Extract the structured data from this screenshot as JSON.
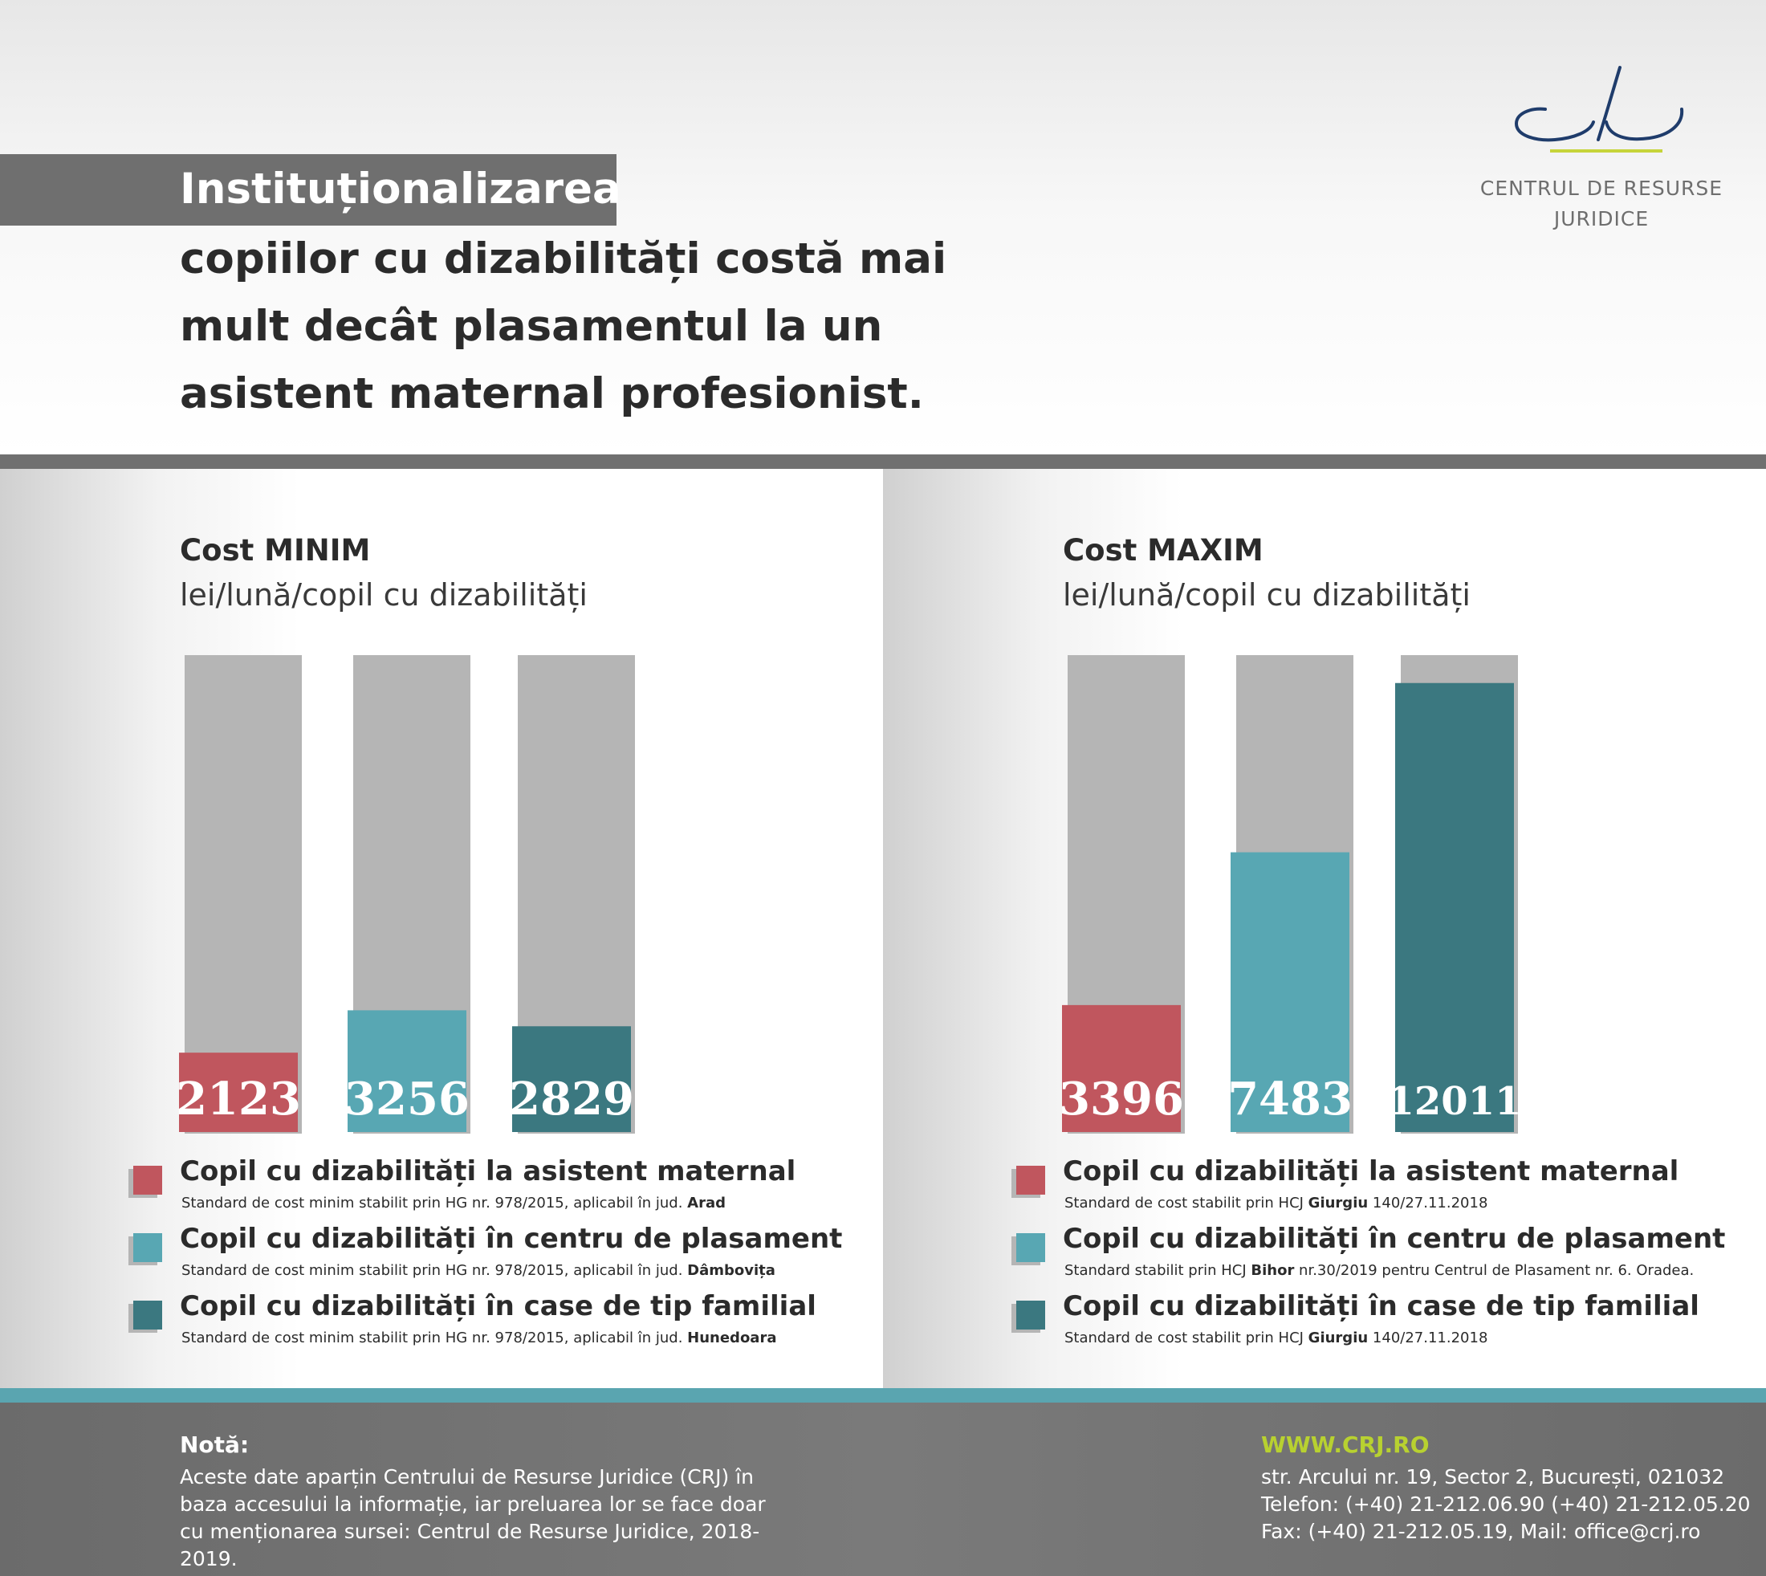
{
  "header": {
    "title_line1": "Instituționalizarea",
    "title_rest": "copiilor cu dizabilități costă mai mult decât plasamentul la un asistent maternal profesionist."
  },
  "logo": {
    "name_line1": "CENTRUL DE RESURSE",
    "name_line2": "JURIDICE"
  },
  "colors": {
    "red": "#c0565e",
    "light_teal": "#58a7b3",
    "dark_teal": "#3b7880",
    "track": "#b5b5b5"
  },
  "chart_data": [
    {
      "type": "bar",
      "title": "Cost MINIM",
      "subtitle": "lei/lună/copil cu dizabilități",
      "ylim": [
        0,
        12800
      ],
      "categories": [
        "Copil cu dizabilități la asistent maternal",
        "Copil cu dizabilități în centru de plasament",
        "Copil cu dizabilități în case de tip familial"
      ],
      "values": [
        2123,
        3256,
        2829
      ],
      "value_labels": [
        "2123",
        "3256",
        "2829"
      ],
      "legend": [
        {
          "label": "Copil cu dizabilități la asistent maternal",
          "note_prefix": "Standard de cost minim stabilit prin HG nr. 978/2015, aplicabil în jud. ",
          "note_bold": "Arad",
          "note_suffix": "",
          "color": "#c0565e"
        },
        {
          "label": "Copil cu dizabilități în centru de plasament",
          "note_prefix": "Standard de cost minim stabilit prin HG nr. 978/2015, aplicabil în jud. ",
          "note_bold": "Dâmbovița",
          "note_suffix": "",
          "color": "#58a7b3"
        },
        {
          "label": "Copil cu dizabilități în case de tip familial",
          "note_prefix": "Standard de cost minim stabilit prin HG nr. 978/2015, aplicabil în jud. ",
          "note_bold": "Hunedoara",
          "note_suffix": "",
          "color": "#3b7880"
        }
      ]
    },
    {
      "type": "bar",
      "title": "Cost MAXIM",
      "subtitle": "lei/lună/copil cu dizabilități",
      "ylim": [
        0,
        12800
      ],
      "categories": [
        "Copil cu dizabilități la asistent maternal",
        "Copil cu dizabilități în centru de plasament",
        "Copil cu dizabilități în case de tip familial"
      ],
      "values": [
        3396,
        7483,
        12011
      ],
      "value_labels": [
        "3396",
        "7483",
        "12011"
      ],
      "legend": [
        {
          "label": "Copil cu dizabilități la asistent maternal",
          "note_prefix": "Standard de cost stabilit prin HCJ ",
          "note_bold": "Giurgiu",
          "note_suffix": " 140/27.11.2018",
          "color": "#c0565e"
        },
        {
          "label": "Copil cu dizabilități în centru de plasament",
          "note_prefix": "Standard stabilit prin HCJ ",
          "note_bold": "Bihor",
          "note_suffix": " nr.30/2019 pentru Centrul de Plasament nr. 6. Oradea.",
          "color": "#58a7b3"
        },
        {
          "label": "Copil cu dizabilități în case de tip familial",
          "note_prefix": "Standard de cost stabilit prin HCJ ",
          "note_bold": "Giurgiu",
          "note_suffix": " 140/27.11.2018",
          "color": "#3b7880"
        }
      ]
    }
  ],
  "footer": {
    "note_title": "Notă:",
    "note_body": "Aceste date aparțin Centrului de Resurse Juridice (CRJ) în baza accesului la informație, iar preluarea lor se face doar cu menționarea sursei: Centrul de Resurse Juridice, 2018-2019.",
    "website": "WWW.CRJ.RO",
    "address": "str. Arcului nr. 19, Sector 2, București, 021032",
    "phone": "Telefon: (+40) 21-212.06.90 (+40) 21-212.05.20",
    "fax_mail": "Fax: (+40) 21-212.05.19, Mail: office@crj.ro"
  }
}
